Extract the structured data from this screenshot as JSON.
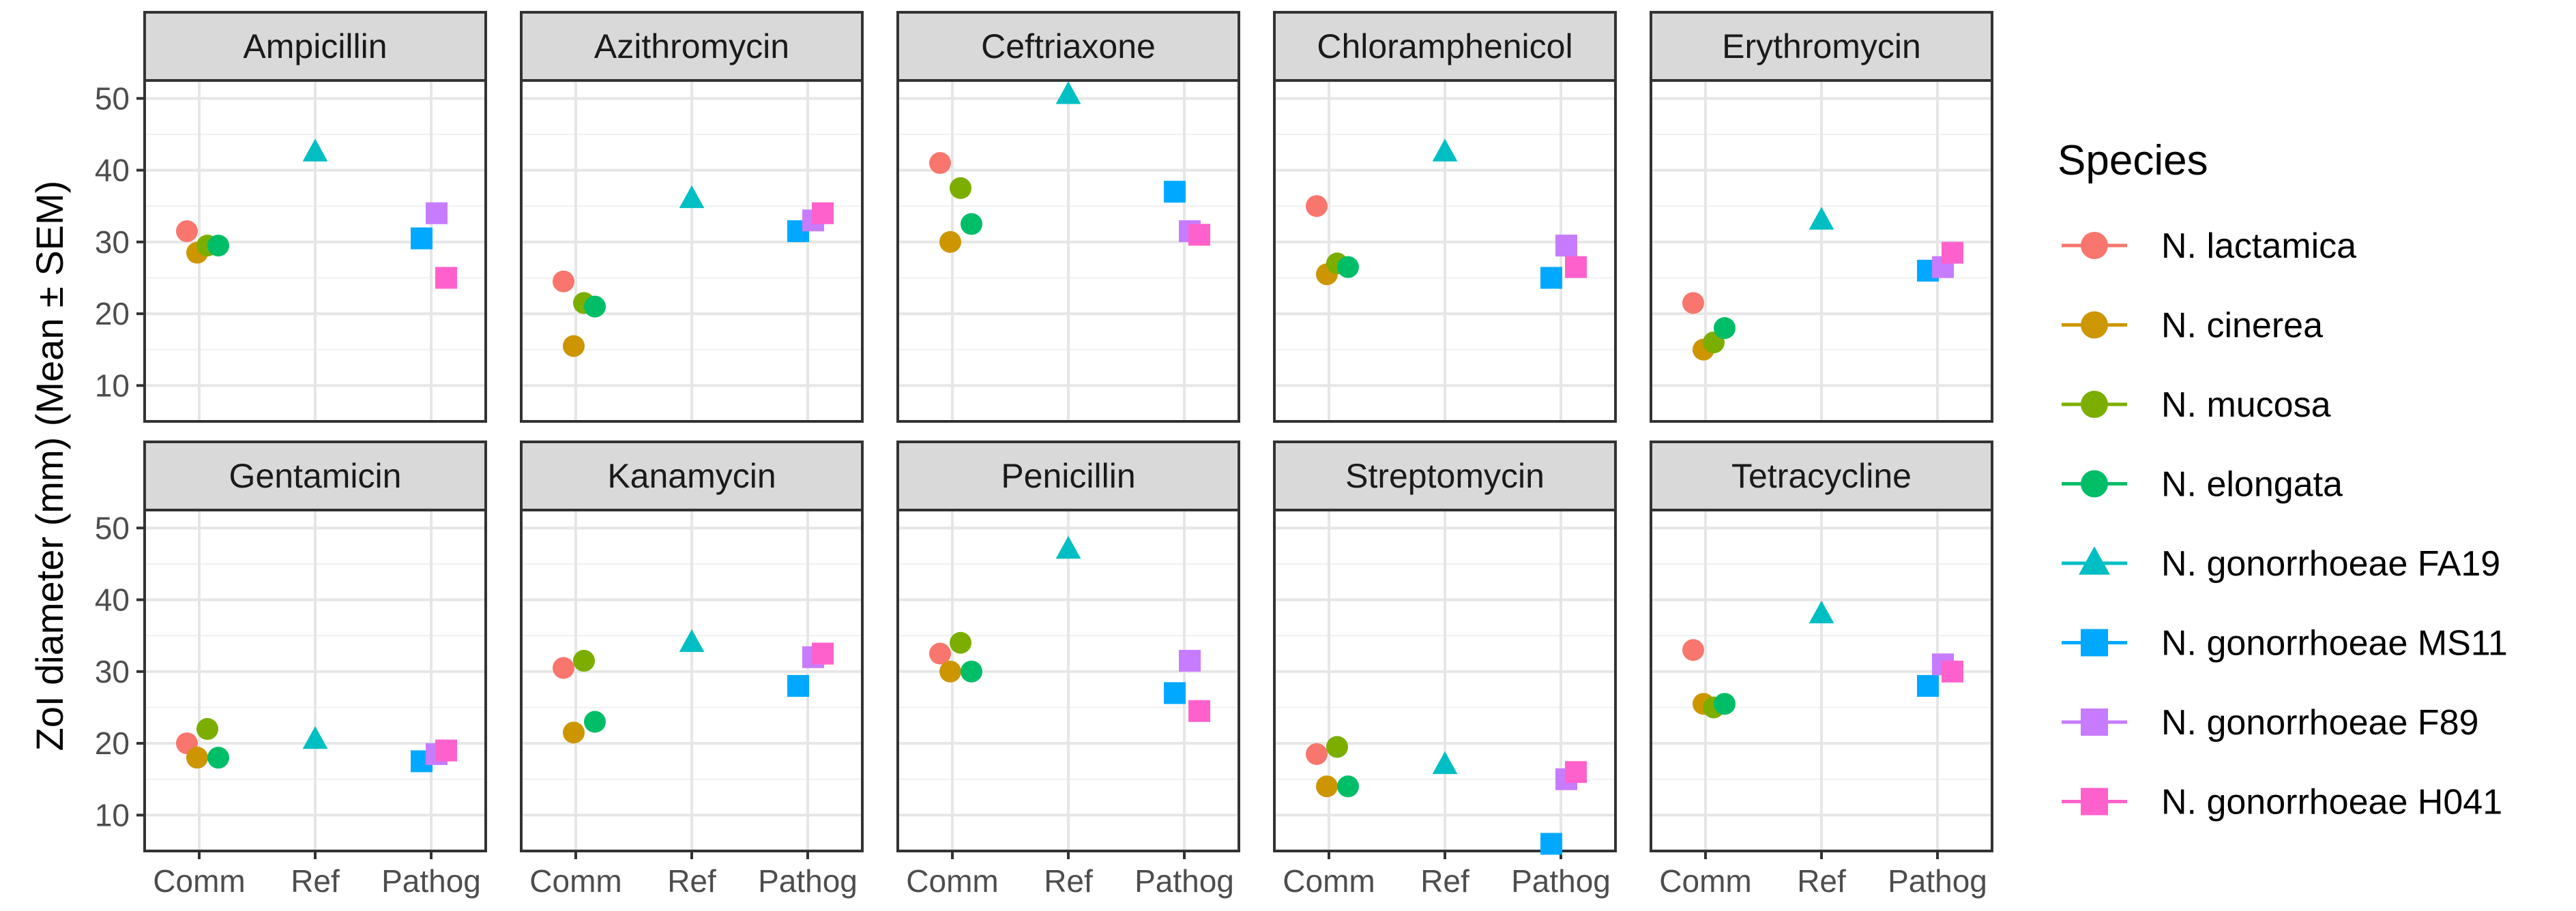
{
  "chart_data": {
    "type": "scatter",
    "layout": "faceted 2x5",
    "ylabel": "ZoI diameter (mm) (Mean ± SEM)",
    "xlabel": "",
    "categories": [
      "Comm",
      "Ref",
      "Pathog"
    ],
    "y_ticks": [
      10,
      20,
      30,
      40,
      50
    ],
    "ylim": [
      5,
      52.5
    ],
    "legend": {
      "title": "Species",
      "position": "right",
      "entries": [
        {
          "name": "N. lactamica",
          "color": "#F8766D",
          "shape": "circle",
          "group": "Comm"
        },
        {
          "name": "N. cinerea",
          "color": "#CD9600",
          "shape": "circle",
          "group": "Comm"
        },
        {
          "name": "N. mucosa",
          "color": "#7CAE00",
          "shape": "circle",
          "group": "Comm"
        },
        {
          "name": "N. elongata",
          "color": "#00BE67",
          "shape": "circle",
          "group": "Comm"
        },
        {
          "name": "N. gonorrhoeae FA19",
          "color": "#00BFC4",
          "shape": "triangle",
          "group": "Ref"
        },
        {
          "name": "N. gonorrhoeae MS11",
          "color": "#00A9FF",
          "shape": "square",
          "group": "Pathog"
        },
        {
          "name": "N. gonorrhoeae F89",
          "color": "#C77CFF",
          "shape": "square",
          "group": "Pathog"
        },
        {
          "name": "N. gonorrhoeae H041",
          "color": "#FF61CC",
          "shape": "square",
          "group": "Pathog"
        }
      ]
    },
    "panels": [
      {
        "title": "Ampicillin",
        "values": {
          "N. lactamica": 31.5,
          "N. cinerea": 28.5,
          "N. mucosa": 29.5,
          "N. elongata": 29.5,
          "N. gonorrhoeae FA19": 42.5,
          "N. gonorrhoeae MS11": 30.5,
          "N. gonorrhoeae F89": 34,
          "N. gonorrhoeae H041": 25
        }
      },
      {
        "title": "Azithromycin",
        "values": {
          "N. lactamica": 24.5,
          "N. cinerea": 15.5,
          "N. mucosa": 21.5,
          "N. elongata": 21,
          "N. gonorrhoeae FA19": 36,
          "N. gonorrhoeae MS11": 31.5,
          "N. gonorrhoeae F89": 33,
          "N. gonorrhoeae H041": 34
        }
      },
      {
        "title": "Ceftriaxone",
        "values": {
          "N. lactamica": 41,
          "N. cinerea": 30,
          "N. mucosa": 37.5,
          "N. elongata": 32.5,
          "N. gonorrhoeae FA19": 50.5,
          "N. gonorrhoeae MS11": 37,
          "N. gonorrhoeae F89": 31.5,
          "N. gonorrhoeae H041": 31
        }
      },
      {
        "title": "Chloramphenicol",
        "values": {
          "N. lactamica": 35,
          "N. cinerea": 25.5,
          "N. mucosa": 27,
          "N. elongata": 26.5,
          "N. gonorrhoeae FA19": 42.5,
          "N. gonorrhoeae MS11": 25,
          "N. gonorrhoeae F89": 29.5,
          "N. gonorrhoeae H041": 26.5
        }
      },
      {
        "title": "Erythromycin",
        "values": {
          "N. lactamica": 21.5,
          "N. cinerea": 15,
          "N. mucosa": 16,
          "N. elongata": 18,
          "N. gonorrhoeae FA19": 33,
          "N. gonorrhoeae MS11": 26,
          "N. gonorrhoeae F89": 26.5,
          "N. gonorrhoeae H041": 28.5
        }
      },
      {
        "title": "Gentamicin",
        "values": {
          "N. lactamica": 20,
          "N. cinerea": 18,
          "N. mucosa": 22,
          "N. elongata": 18,
          "N. gonorrhoeae FA19": 20.5,
          "N. gonorrhoeae MS11": 17.5,
          "N. gonorrhoeae F89": 18.5,
          "N. gonorrhoeae H041": 19
        }
      },
      {
        "title": "Kanamycin",
        "values": {
          "N. lactamica": 30.5,
          "N. cinerea": 21.5,
          "N. mucosa": 31.5,
          "N. elongata": 23,
          "N. gonorrhoeae FA19": 34,
          "N. gonorrhoeae MS11": 28,
          "N. gonorrhoeae F89": 32,
          "N. gonorrhoeae H041": 32.5
        }
      },
      {
        "title": "Penicillin",
        "values": {
          "N. lactamica": 32.5,
          "N. cinerea": 30,
          "N. mucosa": 34,
          "N. elongata": 30,
          "N. gonorrhoeae FA19": 47,
          "N. gonorrhoeae MS11": 27,
          "N. gonorrhoeae F89": 31.5,
          "N. gonorrhoeae H041": 24.5
        }
      },
      {
        "title": "Streptomycin",
        "values": {
          "N. lactamica": 18.5,
          "N. cinerea": 14,
          "N. mucosa": 19.5,
          "N. elongata": 14,
          "N. gonorrhoeae FA19": 17,
          "N. gonorrhoeae MS11": 6,
          "N. gonorrhoeae F89": 15,
          "N. gonorrhoeae H041": 16
        }
      },
      {
        "title": "Tetracycline",
        "values": {
          "N. lactamica": 33,
          "N. cinerea": 25.5,
          "N. mucosa": 25,
          "N. elongata": 25.5,
          "N. gonorrhoeae FA19": 38,
          "N. gonorrhoeae MS11": 28,
          "N. gonorrhoeae F89": 31,
          "N. gonorrhoeae H041": 30
        }
      }
    ]
  }
}
